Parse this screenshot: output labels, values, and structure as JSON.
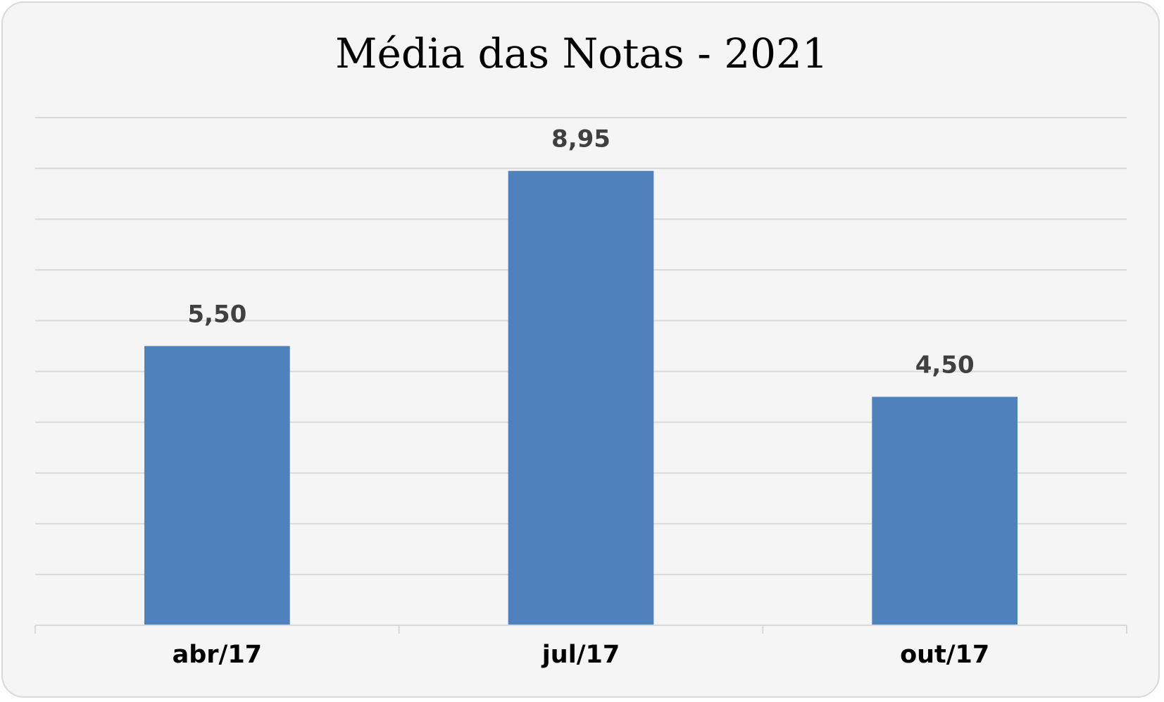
{
  "chart_data": {
    "type": "bar",
    "title": "Média das Notas - 2021",
    "categories": [
      "abr/17",
      "jul/17",
      "out/17"
    ],
    "values": [
      5.5,
      8.95,
      4.5
    ],
    "value_labels": [
      "5,50",
      "8,95",
      "4,50"
    ],
    "xlabel": "",
    "ylabel": "",
    "ylim": [
      0,
      10
    ],
    "grid": true,
    "legend": "none",
    "bar_color": "#4f81bd",
    "grid_color": "#d9d9d9"
  }
}
